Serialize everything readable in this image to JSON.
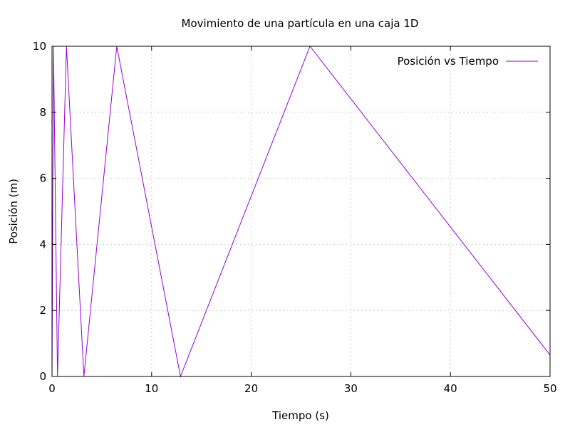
{
  "chart_data": {
    "type": "line",
    "title": "Movimiento de una partícula en una caja 1D",
    "xlabel": "Tiempo (s)",
    "ylabel": "Posición (m)",
    "xlim": [
      0,
      50
    ],
    "ylim": [
      0,
      10
    ],
    "x_ticks": [
      0,
      10,
      20,
      30,
      40,
      50
    ],
    "y_ticks": [
      0,
      2,
      4,
      6,
      8,
      10
    ],
    "x_tick_labels": [
      "0",
      "10",
      "20",
      "30",
      "40",
      "50"
    ],
    "y_tick_labels": [
      "0",
      "2",
      "4",
      "6",
      "8",
      "10"
    ],
    "grid": true,
    "legend_position": "top-right",
    "series": [
      {
        "name": "Posición vs Tiempo",
        "color": "#9400d3",
        "x": [
          0,
          0.15,
          0.55,
          1.45,
          3.2,
          6.5,
          12.9,
          25.9,
          50
        ],
        "y": [
          0,
          10,
          0,
          10,
          0,
          10,
          0,
          10,
          0.65
        ]
      }
    ]
  }
}
